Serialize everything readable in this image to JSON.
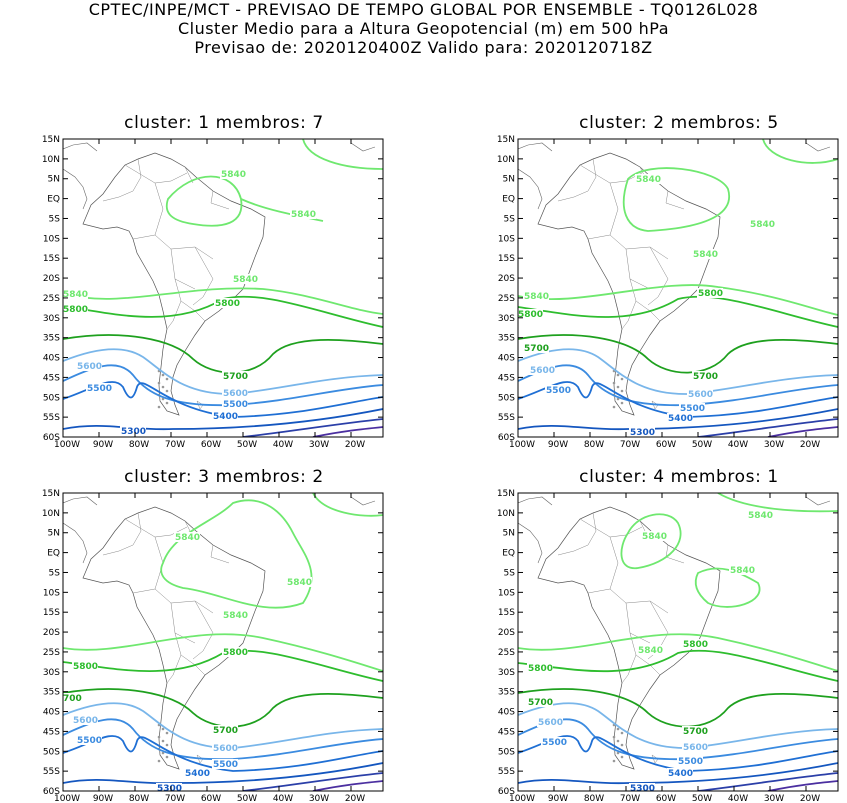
{
  "header": {
    "line1": "CPTEC/INPE/MCT - PREVISAO DE TEMPO GLOBAL POR ENSEMBLE - TQ0126L028",
    "line2": "Cluster Medio para a Altura Geopotencial (m) em 500 hPa",
    "line3": "Previsao de: 2020120400Z    Valido para: 2020120718Z"
  },
  "axes": {
    "lat_labels": [
      "15N",
      "10N",
      "5N",
      "EQ",
      "5S",
      "10S",
      "15S",
      "20S",
      "25S",
      "30S",
      "35S",
      "40S",
      "45S",
      "50S",
      "55S",
      "60S"
    ],
    "lon_labels": [
      "100W",
      "90W",
      "80W",
      "70W",
      "60W",
      "50W",
      "40W",
      "30W",
      "20W"
    ]
  },
  "contour_colors": {
    "5840": "#6fe86f",
    "5800": "#2ebd2e",
    "5700": "#1ea01e",
    "5600": "#79b6ea",
    "5500": "#3b8be0",
    "5400": "#1f6fd4",
    "5300": "#1456bf",
    "5200": "#2b3fa8",
    "5100": "#4b2fa0"
  },
  "panels": [
    {
      "title": "cluster: 1   membros: 7",
      "labels": [
        "5840",
        "5840",
        "5840",
        "5840",
        "5800",
        "5800",
        "5700",
        "5600",
        "5600",
        "5500",
        "5500",
        "5400",
        "5300"
      ]
    },
    {
      "title": "cluster: 2   membros: 5",
      "labels": [
        "5840",
        "5840",
        "5840",
        "5840",
        "5800",
        "5800",
        "5700",
        "5700",
        "5600",
        "5600",
        "5500",
        "5500",
        "5400",
        "5300"
      ]
    },
    {
      "title": "cluster: 3   membros: 2",
      "labels": [
        "5840",
        "5840",
        "5840",
        "5800",
        "5800",
        "700",
        "5700",
        "5600",
        "5600",
        "5500",
        "5500",
        "5400",
        "5300"
      ]
    },
    {
      "title": "cluster: 4   membros: 1",
      "labels": [
        "5840",
        "5840",
        "5840",
        "5840",
        "5800",
        "5800",
        "5700",
        "5700",
        "5600",
        "5600",
        "5500",
        "5500",
        "5400",
        "5300"
      ]
    }
  ]
}
